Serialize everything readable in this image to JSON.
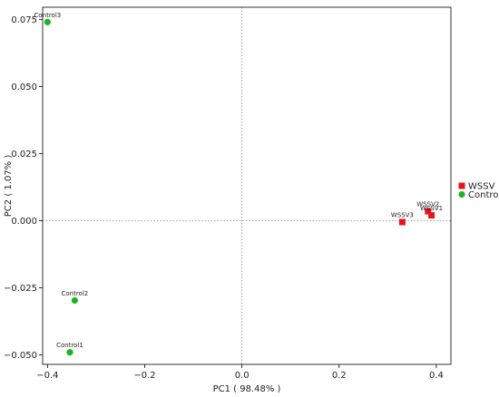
{
  "chart_data": {
    "type": "scatter",
    "title": "",
    "xlabel": "PC1 ( 98.48% )",
    "ylabel": "PC2 ( 1.07% )",
    "xlim": [
      -0.41,
      0.43
    ],
    "ylim": [
      -0.0535,
      0.0795
    ],
    "xticks": [
      -0.4,
      -0.2,
      0.0,
      0.2,
      0.4
    ],
    "xtick_labels": [
      "−0.4",
      "−0.2",
      "0.0",
      "0.2",
      "0.4"
    ],
    "yticks": [
      -0.05,
      -0.025,
      0.0,
      0.025,
      0.05,
      0.075
    ],
    "ytick_labels": [
      "−0.050",
      "−0.025",
      "0.000",
      "0.025",
      "0.050",
      "0.075"
    ],
    "zero_lines": true,
    "grid": false,
    "legend_position": "right",
    "series": [
      {
        "name": "WSSV",
        "marker": "square",
        "color": "#e8141b",
        "points": [
          {
            "label": "WSSV3",
            "x": 0.33,
            "y": -0.0005
          },
          {
            "label": "WSSV2",
            "x": 0.383,
            "y": 0.0035
          },
          {
            "label": "WSSV1",
            "x": 0.39,
            "y": 0.002
          }
        ]
      },
      {
        "name": "Control",
        "marker": "circle",
        "color": "#1fb51f",
        "points": [
          {
            "label": "Control3",
            "x": -0.4,
            "y": 0.074
          },
          {
            "label": "Control2",
            "x": -0.344,
            "y": -0.0297
          },
          {
            "label": "Control1",
            "x": -0.354,
            "y": -0.049
          }
        ]
      }
    ]
  }
}
